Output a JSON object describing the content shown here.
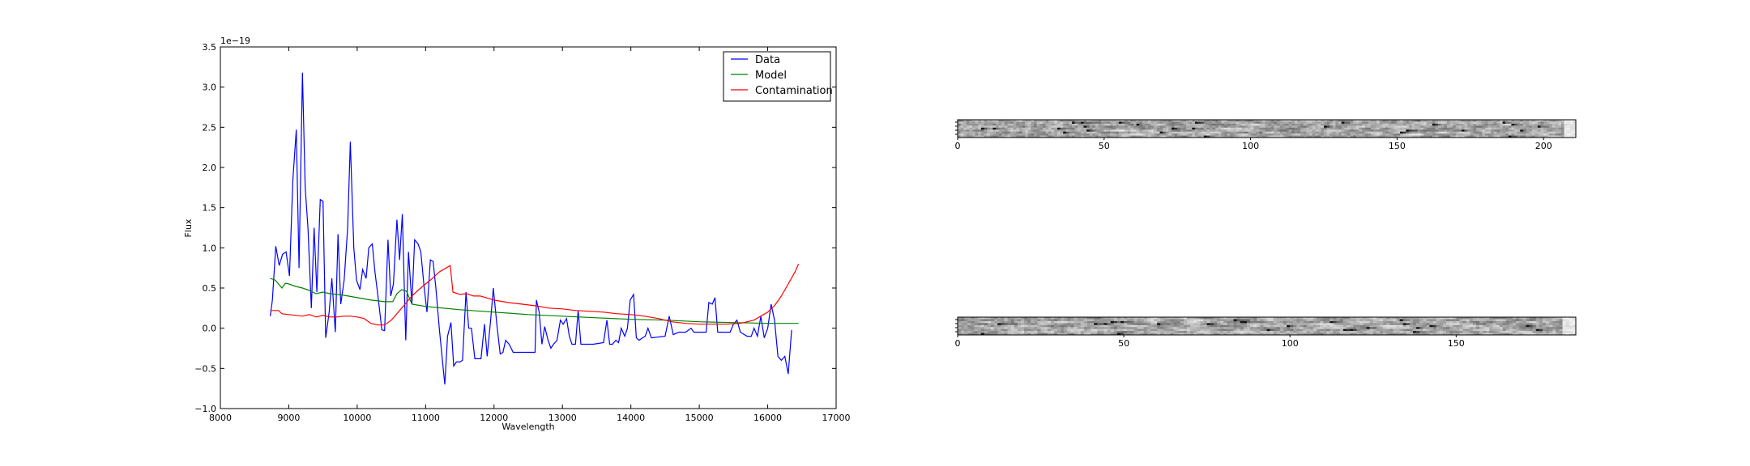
{
  "chart_data": [
    {
      "type": "line",
      "xlabel": "Wavelength",
      "ylabel": "Flux",
      "offset_label": "1e−19",
      "xlim": [
        8000,
        17000
      ],
      "ylim": [
        -1.0,
        3.5
      ],
      "xticks": [
        8000,
        9000,
        10000,
        11000,
        12000,
        13000,
        14000,
        15000,
        16000,
        17000
      ],
      "yticks": [
        -1.0,
        -0.5,
        0.0,
        0.5,
        1.0,
        1.5,
        2.0,
        2.5,
        3.0,
        3.5
      ],
      "xtick_labels": [
        "8000",
        "9000",
        "10000",
        "11000",
        "12000",
        "13000",
        "14000",
        "15000",
        "16000",
        "17000"
      ],
      "ytick_labels": [
        "−1.0",
        "−0.5",
        "0.0",
        "0.5",
        "1.0",
        "1.5",
        "2.0",
        "2.5",
        "3.0",
        "3.5"
      ],
      "legend_position": "top-right",
      "series": [
        {
          "name": "Data",
          "color": "#0000ff",
          "points": [
            [
              8730,
              0.15
            ],
            [
              8760,
              0.35
            ],
            [
              8810,
              1.02
            ],
            [
              8860,
              0.78
            ],
            [
              8910,
              0.92
            ],
            [
              8960,
              0.95
            ],
            [
              9010,
              0.65
            ],
            [
              9060,
              1.85
            ],
            [
              9110,
              2.47
            ],
            [
              9150,
              0.75
            ],
            [
              9200,
              3.18
            ],
            [
              9240,
              1.75
            ],
            [
              9280,
              1.25
            ],
            [
              9330,
              0.25
            ],
            [
              9370,
              1.25
            ],
            [
              9410,
              0.45
            ],
            [
              9460,
              1.6
            ],
            [
              9500,
              1.58
            ],
            [
              9540,
              -0.12
            ],
            [
              9590,
              0.2
            ],
            [
              9630,
              0.62
            ],
            [
              9680,
              -0.05
            ],
            [
              9720,
              1.17
            ],
            [
              9760,
              0.3
            ],
            [
              9810,
              0.6
            ],
            [
              9860,
              1.25
            ],
            [
              9900,
              2.32
            ],
            [
              9950,
              1.0
            ],
            [
              9990,
              0.6
            ],
            [
              10040,
              0.48
            ],
            [
              10080,
              0.73
            ],
            [
              10130,
              0.62
            ],
            [
              10170,
              1.0
            ],
            [
              10220,
              1.05
            ],
            [
              10260,
              0.7
            ],
            [
              10310,
              0.35
            ],
            [
              10360,
              -0.02
            ],
            [
              10400,
              -0.03
            ],
            [
              10450,
              1.1
            ],
            [
              10490,
              0.4
            ],
            [
              10530,
              0.55
            ],
            [
              10580,
              1.35
            ],
            [
              10620,
              0.85
            ],
            [
              10660,
              1.42
            ],
            [
              10710,
              -0.15
            ],
            [
              10750,
              0.95
            ],
            [
              10800,
              0.3
            ],
            [
              10840,
              1.1
            ],
            [
              10890,
              1.05
            ],
            [
              10930,
              0.95
            ],
            [
              10980,
              0.5
            ],
            [
              11020,
              0.2
            ],
            [
              11070,
              0.85
            ],
            [
              11110,
              0.83
            ],
            [
              11150,
              0.5
            ],
            [
              11200,
              0.0
            ],
            [
              11240,
              -0.35
            ],
            [
              11280,
              -0.7
            ],
            [
              11320,
              -0.1
            ],
            [
              11370,
              0.07
            ],
            [
              11410,
              -0.47
            ],
            [
              11450,
              -0.42
            ],
            [
              11500,
              -0.42
            ],
            [
              11540,
              -0.4
            ],
            [
              11590,
              0.45
            ],
            [
              11630,
              0.0
            ],
            [
              11670,
              0.0
            ],
            [
              11720,
              -0.38
            ],
            [
              11760,
              -0.38
            ],
            [
              11810,
              -0.38
            ],
            [
              11860,
              0.05
            ],
            [
              11900,
              -0.35
            ],
            [
              11950,
              0.1
            ],
            [
              11990,
              0.5
            ],
            [
              12040,
              0.05
            ],
            [
              12090,
              -0.32
            ],
            [
              12130,
              -0.3
            ],
            [
              12170,
              -0.15
            ],
            [
              12220,
              -0.2
            ],
            [
              12280,
              -0.3
            ],
            [
              12600,
              -0.3
            ],
            [
              12620,
              0.35
            ],
            [
              12660,
              0.2
            ],
            [
              12700,
              -0.2
            ],
            [
              12740,
              0.02
            ],
            [
              12790,
              -0.15
            ],
            [
              12830,
              -0.25
            ],
            [
              12870,
              -0.2
            ],
            [
              12920,
              -0.15
            ],
            [
              12970,
              0.1
            ],
            [
              13010,
              0.05
            ],
            [
              13060,
              0.12
            ],
            [
              13100,
              -0.1
            ],
            [
              13140,
              -0.2
            ],
            [
              13190,
              -0.2
            ],
            [
              13230,
              0.22
            ],
            [
              13270,
              -0.2
            ],
            [
              13450,
              -0.2
            ],
            [
              13600,
              -0.18
            ],
            [
              13650,
              0.1
            ],
            [
              13690,
              -0.2
            ],
            [
              13730,
              -0.2
            ],
            [
              13780,
              -0.15
            ],
            [
              13820,
              -0.18
            ],
            [
              13860,
              0.0
            ],
            [
              13910,
              -0.1
            ],
            [
              13950,
              0.0
            ],
            [
              13990,
              0.35
            ],
            [
              14040,
              0.42
            ],
            [
              14080,
              -0.12
            ],
            [
              14120,
              -0.15
            ],
            [
              14170,
              -0.12
            ],
            [
              14210,
              -0.1
            ],
            [
              14250,
              0.0
            ],
            [
              14300,
              -0.12
            ],
            [
              14500,
              -0.1
            ],
            [
              14560,
              0.15
            ],
            [
              14620,
              -0.08
            ],
            [
              14700,
              -0.05
            ],
            [
              14800,
              -0.05
            ],
            [
              14880,
              0.0
            ],
            [
              14920,
              -0.05
            ],
            [
              15000,
              -0.05
            ],
            [
              15100,
              -0.05
            ],
            [
              15140,
              0.32
            ],
            [
              15190,
              0.3
            ],
            [
              15230,
              0.38
            ],
            [
              15270,
              -0.05
            ],
            [
              15400,
              -0.05
            ],
            [
              15450,
              -0.05
            ],
            [
              15500,
              0.05
            ],
            [
              15550,
              0.1
            ],
            [
              15600,
              -0.05
            ],
            [
              15700,
              -0.1
            ],
            [
              15760,
              -0.1
            ],
            [
              15800,
              0.0
            ],
            [
              15850,
              -0.1
            ],
            [
              15900,
              0.15
            ],
            [
              15950,
              -0.12
            ],
            [
              16000,
              0.0
            ],
            [
              16050,
              0.3
            ],
            [
              16100,
              0.1
            ],
            [
              16150,
              -0.35
            ],
            [
              16200,
              -0.4
            ],
            [
              16250,
              -0.35
            ],
            [
              16300,
              -0.57
            ],
            [
              16350,
              -0.02
            ]
          ]
        },
        {
          "name": "Model",
          "color": "#008000",
          "points": [
            [
              8730,
              0.62
            ],
            [
              8800,
              0.6
            ],
            [
              8900,
              0.5
            ],
            [
              8950,
              0.56
            ],
            [
              9000,
              0.55
            ],
            [
              9100,
              0.52
            ],
            [
              9200,
              0.5
            ],
            [
              9300,
              0.47
            ],
            [
              9400,
              0.43
            ],
            [
              9500,
              0.45
            ],
            [
              9600,
              0.43
            ],
            [
              9800,
              0.41
            ],
            [
              10000,
              0.38
            ],
            [
              10200,
              0.35
            ],
            [
              10400,
              0.33
            ],
            [
              10520,
              0.33
            ],
            [
              10580,
              0.43
            ],
            [
              10650,
              0.48
            ],
            [
              10720,
              0.46
            ],
            [
              10800,
              0.3
            ],
            [
              11000,
              0.27
            ],
            [
              11500,
              0.23
            ],
            [
              12000,
              0.2
            ],
            [
              12500,
              0.17
            ],
            [
              13000,
              0.15
            ],
            [
              13500,
              0.13
            ],
            [
              14000,
              0.11
            ],
            [
              14500,
              0.1
            ],
            [
              15000,
              0.08
            ],
            [
              15500,
              0.07
            ],
            [
              16000,
              0.06
            ],
            [
              16450,
              0.06
            ]
          ]
        },
        {
          "name": "Contamination",
          "color": "#ff0000",
          "points": [
            [
              8730,
              0.22
            ],
            [
              8800,
              0.22
            ],
            [
              8850,
              0.22
            ],
            [
              8900,
              0.18
            ],
            [
              9000,
              0.17
            ],
            [
              9100,
              0.16
            ],
            [
              9200,
              0.15
            ],
            [
              9300,
              0.17
            ],
            [
              9400,
              0.14
            ],
            [
              9500,
              0.16
            ],
            [
              9600,
              0.14
            ],
            [
              9700,
              0.14
            ],
            [
              9800,
              0.15
            ],
            [
              9900,
              0.15
            ],
            [
              10000,
              0.14
            ],
            [
              10100,
              0.12
            ],
            [
              10200,
              0.06
            ],
            [
              10300,
              0.04
            ],
            [
              10400,
              0.04
            ],
            [
              10500,
              0.1
            ],
            [
              10600,
              0.2
            ],
            [
              10700,
              0.3
            ],
            [
              10800,
              0.4
            ],
            [
              10900,
              0.48
            ],
            [
              11000,
              0.55
            ],
            [
              11100,
              0.62
            ],
            [
              11200,
              0.7
            ],
            [
              11300,
              0.75
            ],
            [
              11360,
              0.78
            ],
            [
              11400,
              0.45
            ],
            [
              11500,
              0.42
            ],
            [
              11600,
              0.43
            ],
            [
              11700,
              0.4
            ],
            [
              11800,
              0.4
            ],
            [
              12000,
              0.35
            ],
            [
              12200,
              0.32
            ],
            [
              12400,
              0.3
            ],
            [
              12600,
              0.28
            ],
            [
              12800,
              0.25
            ],
            [
              13000,
              0.24
            ],
            [
              13200,
              0.22
            ],
            [
              13400,
              0.21
            ],
            [
              13600,
              0.2
            ],
            [
              13800,
              0.18
            ],
            [
              14000,
              0.17
            ],
            [
              14200,
              0.15
            ],
            [
              14400,
              0.12
            ],
            [
              14600,
              0.08
            ],
            [
              14800,
              0.06
            ],
            [
              15000,
              0.05
            ],
            [
              15200,
              0.05
            ],
            [
              15400,
              0.05
            ],
            [
              15600,
              0.06
            ],
            [
              15800,
              0.1
            ],
            [
              16000,
              0.2
            ],
            [
              16100,
              0.28
            ],
            [
              16200,
              0.4
            ],
            [
              16300,
              0.55
            ],
            [
              16400,
              0.7
            ],
            [
              16450,
              0.8
            ]
          ]
        }
      ]
    },
    {
      "type": "heatmap",
      "xlim": [
        0,
        211
      ],
      "xticks": [
        0,
        50,
        100,
        150,
        200
      ],
      "xtick_labels": [
        "0",
        "50",
        "100",
        "150",
        "200"
      ],
      "colormap": "grayscale"
    },
    {
      "type": "heatmap",
      "xlim": [
        0,
        186
      ],
      "xticks": [
        0,
        50,
        100,
        150
      ],
      "xtick_labels": [
        "0",
        "50",
        "100",
        "150"
      ],
      "colormap": "grayscale"
    }
  ]
}
